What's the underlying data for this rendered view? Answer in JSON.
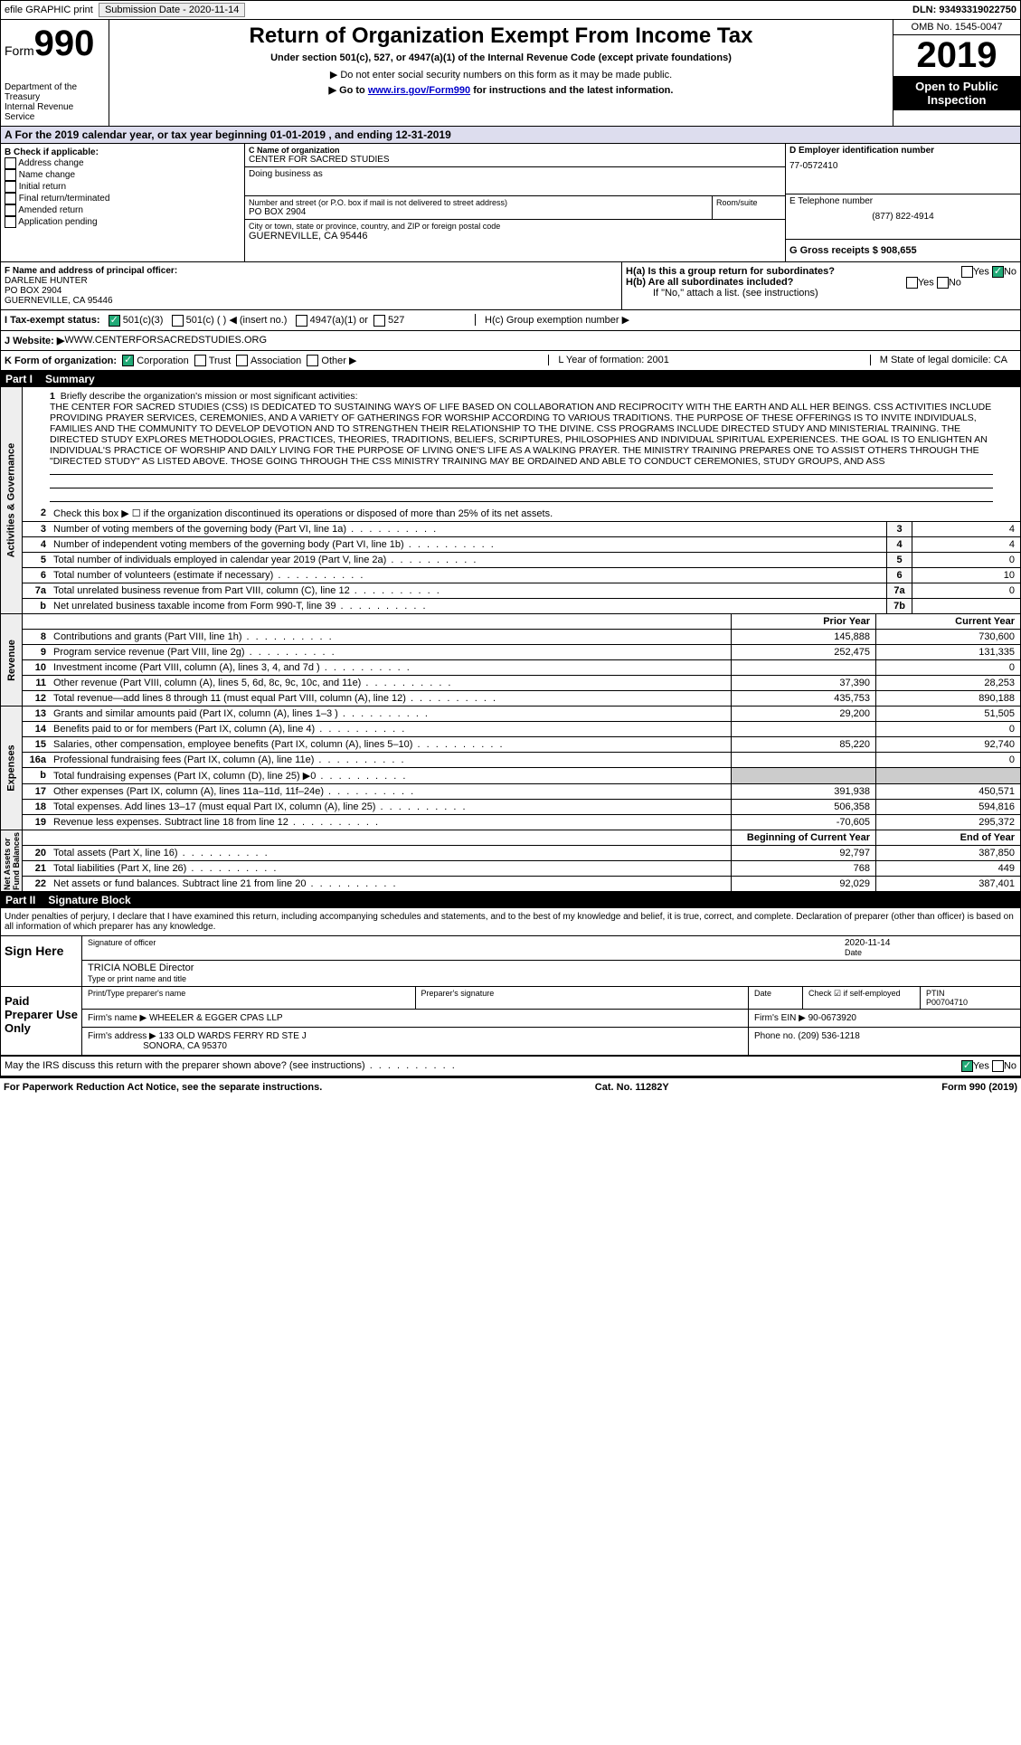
{
  "top": {
    "efile": "efile GRAPHIC print",
    "submission": "Submission Date - 2020-11-14",
    "dln": "DLN: 93493319022750"
  },
  "header": {
    "form": "Form",
    "num": "990",
    "dept": "Department of the Treasury\nInternal Revenue Service",
    "title": "Return of Organization Exempt From Income Tax",
    "sub": "Under section 501(c), 527, or 4947(a)(1) of the Internal Revenue Code (except private foundations)",
    "note1": "▶ Do not enter social security numbers on this form as it may be made public.",
    "note2_pre": "▶ Go to ",
    "note2_link": "www.irs.gov/Form990",
    "note2_post": " for instructions and the latest information.",
    "omb": "OMB No. 1545-0047",
    "year": "2019",
    "open": "Open to Public Inspection"
  },
  "calendar": "A For the 2019 calendar year, or tax year beginning 01-01-2019    , and ending 12-31-2019",
  "b": {
    "label": "B Check if applicable:",
    "opts": [
      "Address change",
      "Name change",
      "Initial return",
      "Final return/terminated",
      "Amended return",
      "Application pending"
    ]
  },
  "c": {
    "name_label": "C Name of organization",
    "name": "CENTER FOR SACRED STUDIES",
    "dba_label": "Doing business as",
    "addr_label": "Number and street (or P.O. box if mail is not delivered to street address)",
    "addr": "PO BOX 2904",
    "room_label": "Room/suite",
    "city_label": "City or town, state or province, country, and ZIP or foreign postal code",
    "city": "GUERNEVILLE, CA  95446"
  },
  "d": {
    "label": "D Employer identification number",
    "val": "77-0572410"
  },
  "e": {
    "label": "E Telephone number",
    "val": "(877) 822-4914"
  },
  "g": {
    "label": "G Gross receipts $ 908,655"
  },
  "f": {
    "label": "F Name and address of principal officer:",
    "name": "DARLENE HUNTER",
    "addr": "PO BOX 2904",
    "city": "GUERNEVILLE, CA  95446"
  },
  "h": {
    "a": "H(a)  Is this a group return for subordinates?",
    "b": "H(b)  Are all subordinates included?",
    "note": "If \"No,\" attach a list. (see instructions)",
    "c": "H(c)  Group exemption number ▶",
    "yes": "Yes",
    "no": "No"
  },
  "i": {
    "label": "I   Tax-exempt status:",
    "c1": "501(c)(3)",
    "c2": "501(c) (  )  ◀ (insert no.)",
    "c3": "4947(a)(1) or",
    "c4": "527"
  },
  "j": {
    "label": "J   Website: ▶",
    "val": " WWW.CENTERFORSACREDSTUDIES.ORG"
  },
  "k": {
    "label": "K Form of organization:",
    "corp": "Corporation",
    "trust": "Trust",
    "assoc": "Association",
    "other": "Other ▶",
    "l": "L Year of formation: 2001",
    "m": "M State of legal domicile: CA"
  },
  "part1": {
    "hdr": "Part I",
    "title": "Summary"
  },
  "mission": {
    "num": "1",
    "label": "Briefly describe the organization's mission or most significant activities:",
    "text": "THE CENTER FOR SACRED STUDIES (CSS) IS DEDICATED TO SUSTAINING WAYS OF LIFE BASED ON COLLABORATION AND RECIPROCITY WITH THE EARTH AND ALL HER BEINGS. CSS ACTIVITIES INCLUDE PROVIDING PRAYER SERVICES, CEREMONIES, AND A VARIETY OF GATHERINGS FOR WORSHIP ACCORDING TO VARIOUS TRADITIONS. THE PURPOSE OF THESE OFFERINGS IS TO INVITE INDIVIDUALS, FAMILIES AND THE COMMUNITY TO DEVELOP DEVOTION AND TO STRENGTHEN THEIR RELATIONSHIP TO THE DIVINE. CSS PROGRAMS INCLUDE DIRECTED STUDY AND MINISTERIAL TRAINING. THE DIRECTED STUDY EXPLORES METHODOLOGIES, PRACTICES, THEORIES, TRADITIONS, BELIEFS, SCRIPTURES, PHILOSOPHIES AND INDIVIDUAL SPIRITUAL EXPERIENCES. THE GOAL IS TO ENLIGHTEN AN INDIVIDUAL'S PRACTICE OF WORSHIP AND DAILY LIVING FOR THE PURPOSE OF LIVING ONE'S LIFE AS A WALKING PRAYER. THE MINISTRY TRAINING PREPARES ONE TO ASSIST OTHERS THROUGH THE \"DIRECTED STUDY\" AS LISTED ABOVE. THOSE GOING THROUGH THE CSS MINISTRY TRAINING MAY BE ORDAINED AND ABLE TO CONDUCT CEREMONIES, STUDY GROUPS, AND ASS"
  },
  "lines_ag": [
    {
      "n": "2",
      "t": "Check this box ▶ ☐ if the organization discontinued its operations or disposed of more than 25% of its net assets.",
      "box": "",
      "v": ""
    },
    {
      "n": "3",
      "t": "Number of voting members of the governing body (Part VI, line 1a)",
      "box": "3",
      "v": "4"
    },
    {
      "n": "4",
      "t": "Number of independent voting members of the governing body (Part VI, line 1b)",
      "box": "4",
      "v": "4"
    },
    {
      "n": "5",
      "t": "Total number of individuals employed in calendar year 2019 (Part V, line 2a)",
      "box": "5",
      "v": "0"
    },
    {
      "n": "6",
      "t": "Total number of volunteers (estimate if necessary)",
      "box": "6",
      "v": "10"
    },
    {
      "n": "7a",
      "t": "Total unrelated business revenue from Part VIII, column (C), line 12",
      "box": "7a",
      "v": "0"
    },
    {
      "n": "b",
      "t": "Net unrelated business taxable income from Form 990-T, line 39",
      "box": "7b",
      "v": ""
    }
  ],
  "col_hdr": {
    "prior": "Prior Year",
    "current": "Current Year"
  },
  "rev": [
    {
      "n": "8",
      "t": "Contributions and grants (Part VIII, line 1h)",
      "p": "145,888",
      "c": "730,600"
    },
    {
      "n": "9",
      "t": "Program service revenue (Part VIII, line 2g)",
      "p": "252,475",
      "c": "131,335"
    },
    {
      "n": "10",
      "t": "Investment income (Part VIII, column (A), lines 3, 4, and 7d )",
      "p": "",
      "c": "0"
    },
    {
      "n": "11",
      "t": "Other revenue (Part VIII, column (A), lines 5, 6d, 8c, 9c, 10c, and 11e)",
      "p": "37,390",
      "c": "28,253"
    },
    {
      "n": "12",
      "t": "Total revenue—add lines 8 through 11 (must equal Part VIII, column (A), line 12)",
      "p": "435,753",
      "c": "890,188"
    }
  ],
  "exp": [
    {
      "n": "13",
      "t": "Grants and similar amounts paid (Part IX, column (A), lines 1–3 )",
      "p": "29,200",
      "c": "51,505"
    },
    {
      "n": "14",
      "t": "Benefits paid to or for members (Part IX, column (A), line 4)",
      "p": "",
      "c": "0"
    },
    {
      "n": "15",
      "t": "Salaries, other compensation, employee benefits (Part IX, column (A), lines 5–10)",
      "p": "85,220",
      "c": "92,740"
    },
    {
      "n": "16a",
      "t": "Professional fundraising fees (Part IX, column (A), line 11e)",
      "p": "",
      "c": "0"
    },
    {
      "n": "b",
      "t": "Total fundraising expenses (Part IX, column (D), line 25) ▶0",
      "p": "SHADE",
      "c": "SHADE"
    },
    {
      "n": "17",
      "t": "Other expenses (Part IX, column (A), lines 11a–11d, 11f–24e)",
      "p": "391,938",
      "c": "450,571"
    },
    {
      "n": "18",
      "t": "Total expenses. Add lines 13–17 (must equal Part IX, column (A), line 25)",
      "p": "506,358",
      "c": "594,816"
    },
    {
      "n": "19",
      "t": "Revenue less expenses. Subtract line 18 from line 12",
      "p": "-70,605",
      "c": "295,372"
    }
  ],
  "na_hdr": {
    "begin": "Beginning of Current Year",
    "end": "End of Year"
  },
  "na": [
    {
      "n": "20",
      "t": "Total assets (Part X, line 16)",
      "p": "92,797",
      "c": "387,850"
    },
    {
      "n": "21",
      "t": "Total liabilities (Part X, line 26)",
      "p": "768",
      "c": "449"
    },
    {
      "n": "22",
      "t": "Net assets or fund balances. Subtract line 21 from line 20",
      "p": "92,029",
      "c": "387,401"
    }
  ],
  "part2": {
    "hdr": "Part II",
    "title": "Signature Block"
  },
  "penalty": "Under penalties of perjury, I declare that I have examined this return, including accompanying schedules and statements, and to the best of my knowledge and belief, it is true, correct, and complete. Declaration of preparer (other than officer) is based on all information of which preparer has any knowledge.",
  "sign": {
    "here": "Sign Here",
    "sig": "Signature of officer",
    "date": "Date",
    "date_val": "2020-11-14",
    "name": "TRICIA NOBLE  Director",
    "type": "Type or print name and title"
  },
  "paid": {
    "label": "Paid Preparer Use Only",
    "print": "Print/Type preparer's name",
    "sig": "Preparer's signature",
    "date": "Date",
    "check": "Check ☑ if self-employed",
    "ptin": "PTIN",
    "ptin_val": "P00704710",
    "firm_name_l": "Firm's name    ▶",
    "firm_name": "WHEELER & EGGER CPAS LLP",
    "firm_ein": "Firm's EIN ▶ 90-0673920",
    "firm_addr_l": "Firm's address ▶",
    "firm_addr": "133 OLD WARDS FERRY RD STE J",
    "firm_city": "SONORA, CA  95370",
    "phone": "Phone no. (209) 536-1218"
  },
  "discuss": "May the IRS discuss this return with the preparer shown above? (see instructions)",
  "footer": {
    "paperwork": "For Paperwork Reduction Act Notice, see the separate instructions.",
    "cat": "Cat. No. 11282Y",
    "form": "Form 990 (2019)"
  }
}
